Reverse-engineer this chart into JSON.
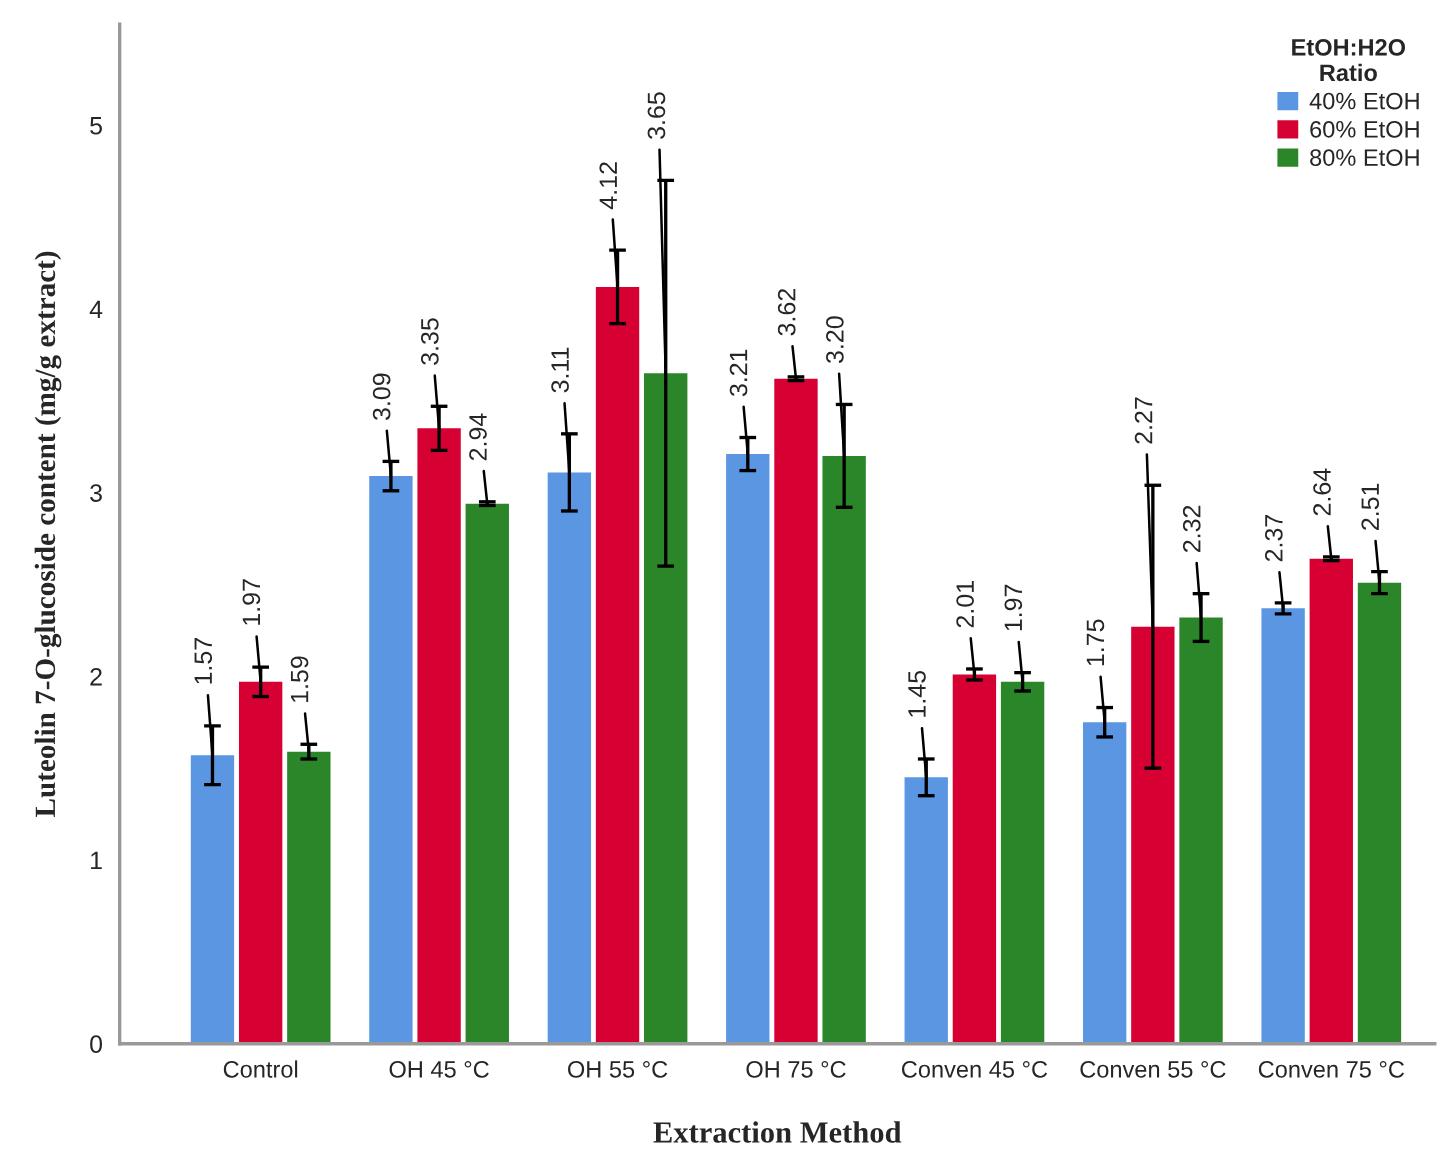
{
  "chart_data": {
    "type": "bar",
    "xlabel": "Extraction Method",
    "ylabel": "Luteolin 7-O-glucoside content (mg/g extract)",
    "legend_title": "EtOH:H2O\nRatio",
    "categories": [
      "Control",
      "OH 45 °C",
      "OH 55 °C",
      "OH 75 °C",
      "Conven 45 °C",
      "Conven 55 °C",
      "Conven 75 °C"
    ],
    "series": [
      {
        "name": "40% EtOH",
        "color": "#5b96e2",
        "values": [
          1.57,
          3.09,
          3.11,
          3.21,
          1.45,
          1.75,
          2.37
        ],
        "errors": [
          0.16,
          0.08,
          0.21,
          0.09,
          0.1,
          0.08,
          0.03
        ],
        "value_labels": [
          "1.57",
          "3.09",
          "3.11",
          "3.21",
          "1.45",
          "1.75",
          "2.37"
        ]
      },
      {
        "name": "60% EtOH",
        "color": "#d60032",
        "values": [
          1.97,
          3.35,
          4.12,
          3.62,
          2.01,
          2.27,
          2.64
        ],
        "errors": [
          0.08,
          0.12,
          0.2,
          0.01,
          0.03,
          0.77,
          0.01
        ],
        "value_labels": [
          "1.97",
          "3.35",
          "4.12",
          "3.62",
          "2.01",
          "2.27",
          "2.64"
        ]
      },
      {
        "name": "80% EtOH",
        "color": "#2b8529",
        "values": [
          1.59,
          2.94,
          3.65,
          3.2,
          1.97,
          2.32,
          2.51
        ],
        "errors": [
          0.04,
          0.01,
          1.05,
          0.28,
          0.05,
          0.13,
          0.06
        ],
        "value_labels": [
          "1.59",
          "2.94",
          "3.65",
          "3.20",
          "1.97",
          "2.32",
          "2.51"
        ]
      }
    ],
    "ylim": [
      0,
      5.55
    ],
    "yticks": [
      0,
      1,
      2,
      3,
      4,
      5
    ],
    "grid": false,
    "legend": "top right"
  }
}
